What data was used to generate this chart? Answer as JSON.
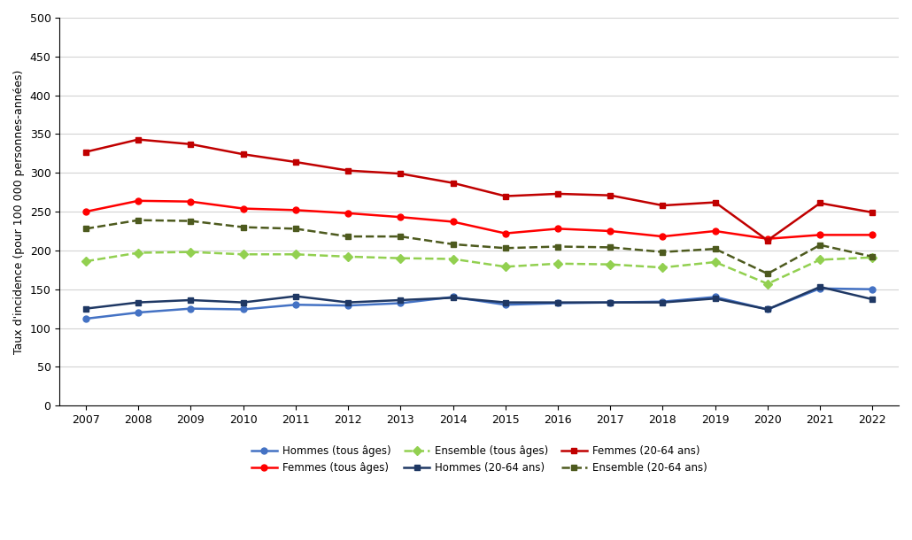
{
  "years": [
    2007,
    2008,
    2009,
    2010,
    2011,
    2012,
    2013,
    2014,
    2015,
    2016,
    2017,
    2018,
    2019,
    2020,
    2021,
    2022
  ],
  "hommes_tous_ages": [
    112,
    120,
    125,
    124,
    130,
    129,
    132,
    140,
    130,
    132,
    133,
    134,
    140,
    124,
    151,
    150
  ],
  "femmes_tous_ages": [
    250,
    264,
    263,
    254,
    252,
    248,
    243,
    237,
    222,
    228,
    225,
    218,
    225,
    215,
    220,
    220
  ],
  "ensemble_tous_ages": [
    186,
    197,
    198,
    195,
    195,
    192,
    190,
    189,
    179,
    183,
    182,
    178,
    185,
    157,
    188,
    191
  ],
  "hommes_20_64": [
    125,
    133,
    136,
    133,
    141,
    133,
    136,
    139,
    133,
    133,
    133,
    133,
    138,
    124,
    153,
    137
  ],
  "femmes_20_64": [
    327,
    343,
    337,
    324,
    314,
    303,
    299,
    287,
    270,
    273,
    271,
    258,
    262,
    213,
    261,
    249
  ],
  "ensemble_20_64": [
    228,
    239,
    238,
    230,
    228,
    218,
    218,
    208,
    203,
    205,
    204,
    198,
    202,
    170,
    207,
    192
  ],
  "color_hommes_tous": "#4472C4",
  "color_femmes_tous": "#FF0000",
  "color_ensemble_tous": "#92D050",
  "color_hommes_2064": "#1F3864",
  "color_femmes_2064": "#C00000",
  "color_ensemble_2064": "#4D5A1E",
  "ylabel": "Taux d'incidence (pour 100 000 personnes-années)",
  "ylim": [
    0,
    500
  ],
  "yticks": [
    0,
    50,
    100,
    150,
    200,
    250,
    300,
    350,
    400,
    450,
    500
  ],
  "legend_row1": [
    "Hommes (tous âges)",
    "Femmes (tous âges)",
    "Ensemble (tous âges)"
  ],
  "legend_row2": [
    "Hommes (20-64 ans)",
    "Femmes (20-64 ans)",
    "Ensemble (20-64 ans)"
  ]
}
